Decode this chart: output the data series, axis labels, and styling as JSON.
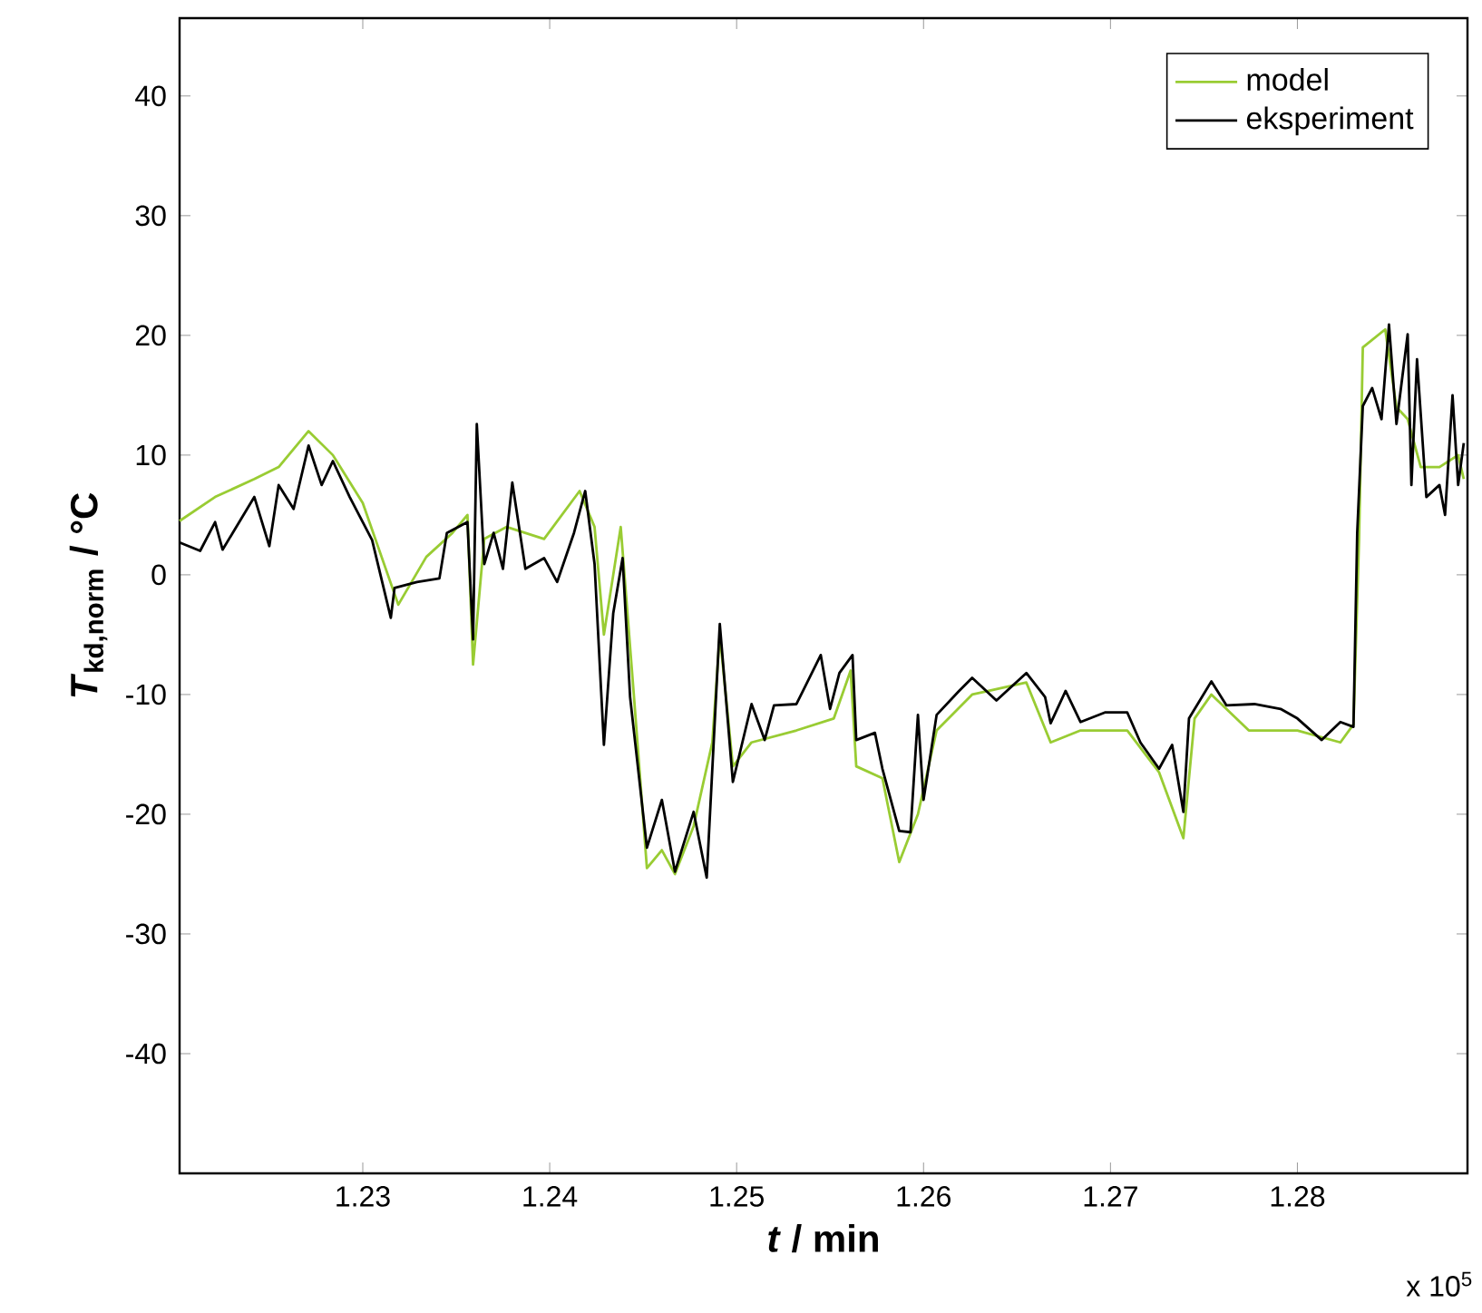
{
  "chart_data": {
    "type": "line",
    "xlabel": "*t* / min",
    "ylabel": "*T*$_{kd,norm}$ / °C",
    "annotations": [
      "x 10$^{5}$"
    ],
    "xlim": [
      1.2202,
      1.2891
    ],
    "ylim": [
      -50,
      46.5
    ],
    "xticks": [
      1.23,
      1.24,
      1.25,
      1.26,
      1.27,
      1.28
    ],
    "yticks": [
      -40,
      -30,
      -20,
      -10,
      0,
      10,
      20,
      30,
      40
    ],
    "legend": "top right",
    "grid": false,
    "marker": "none",
    "line_style": "solid",
    "series": [
      {
        "name": "model",
        "color": "#99cc33",
        "x": [
          1.2202,
          1.2221,
          1.2242,
          1.2255,
          1.2271,
          1.2284,
          1.23,
          1.2319,
          1.2334,
          1.2348,
          1.2356,
          1.2359,
          1.2365,
          1.2377,
          1.2397,
          1.2416,
          1.2424,
          1.2429,
          1.2438,
          1.2445,
          1.2452,
          1.246,
          1.2467,
          1.2477,
          1.2487,
          1.2491,
          1.2498,
          1.2508,
          1.2532,
          1.2552,
          1.2561,
          1.2564,
          1.2578,
          1.2587,
          1.2597,
          1.2607,
          1.2626,
          1.2655,
          1.2668,
          1.2684,
          1.2709,
          1.2726,
          1.2739,
          1.2745,
          1.2754,
          1.2774,
          1.28,
          1.2823,
          1.283,
          1.2833,
          1.2835,
          1.2847,
          1.2853,
          1.2859,
          1.2866,
          1.2876,
          1.2886,
          1.2889
        ],
        "values": [
          4.5,
          6.5,
          8,
          9,
          12,
          10,
          6,
          -2.5,
          1.5,
          3.5,
          5,
          -7.5,
          3,
          4,
          3,
          7,
          4,
          -5,
          4,
          -10,
          -24.5,
          -23,
          -25,
          -21,
          -14,
          -5,
          -16,
          -14,
          -13,
          -12,
          -8,
          -16,
          -17,
          -24,
          -20,
          -13,
          -10,
          -9,
          -14,
          -13,
          -13,
          -16.5,
          -22,
          -12,
          -10,
          -13,
          -13,
          -14,
          -12.5,
          3,
          19,
          20.5,
          14,
          13,
          9,
          9,
          10,
          8
        ]
      },
      {
        "name": "eksperiment",
        "color": "#000000",
        "x": [
          1.2202,
          1.2213,
          1.2221,
          1.2225,
          1.2242,
          1.225,
          1.2255,
          1.2263,
          1.2271,
          1.2278,
          1.2284,
          1.2293,
          1.2305,
          1.2315,
          1.2317,
          1.2329,
          1.2341,
          1.2345,
          1.2356,
          1.2359,
          1.2361,
          1.2365,
          1.237,
          1.2375,
          1.238,
          1.2387,
          1.2397,
          1.2404,
          1.2413,
          1.2419,
          1.2424,
          1.2429,
          1.2434,
          1.2439,
          1.2443,
          1.2452,
          1.246,
          1.2467,
          1.2477,
          1.2484,
          1.2491,
          1.2498,
          1.2508,
          1.2515,
          1.252,
          1.2532,
          1.2545,
          1.255,
          1.2555,
          1.2562,
          1.2564,
          1.2574,
          1.2578,
          1.2587,
          1.2593,
          1.2597,
          1.26,
          1.2607,
          1.2619,
          1.2626,
          1.2639,
          1.2655,
          1.2665,
          1.2668,
          1.2676,
          1.2684,
          1.2697,
          1.2709,
          1.2716,
          1.2726,
          1.2733,
          1.2739,
          1.2742,
          1.2754,
          1.2762,
          1.2777,
          1.2791,
          1.28,
          1.2813,
          1.2823,
          1.283,
          1.2832,
          1.2835,
          1.284,
          1.2845,
          1.2849,
          1.2853,
          1.2859,
          1.2861,
          1.2864,
          1.2869,
          1.2876,
          1.2879,
          1.2883,
          1.2886,
          1.2889
        ],
        "values": [
          2.7,
          2.0,
          4.4,
          2.1,
          6.5,
          2.4,
          7.5,
          5.5,
          10.8,
          7.5,
          9.5,
          6.5,
          2.9,
          -3.6,
          -1.1,
          -0.6,
          -0.3,
          3.5,
          4.4,
          -5.4,
          12.6,
          0.9,
          3.5,
          0.5,
          7.7,
          0.5,
          1.4,
          -0.6,
          3.5,
          7.0,
          0.9,
          -14.2,
          -3.2,
          1.4,
          -10.2,
          -22.8,
          -18.8,
          -24.8,
          -19.8,
          -25.3,
          -4.1,
          -17.3,
          -10.8,
          -13.8,
          -10.9,
          -10.8,
          -6.7,
          -11.2,
          -8.2,
          -6.7,
          -13.8,
          -13.2,
          -16.2,
          -21.4,
          -21.5,
          -11.7,
          -18.8,
          -11.7,
          -9.7,
          -8.6,
          -10.5,
          -8.2,
          -10.2,
          -12.4,
          -9.7,
          -12.3,
          -11.5,
          -11.5,
          -14,
          -16.2,
          -14.2,
          -19.8,
          -12,
          -8.9,
          -10.9,
          -10.8,
          -11.2,
          -12,
          -13.8,
          -12.3,
          -12.7,
          3.5,
          14.1,
          15.6,
          13,
          20.9,
          12.6,
          20.1,
          7.5,
          18.0,
          6.5,
          7.5,
          5.0,
          15,
          7.5,
          11
        ]
      }
    ]
  }
}
